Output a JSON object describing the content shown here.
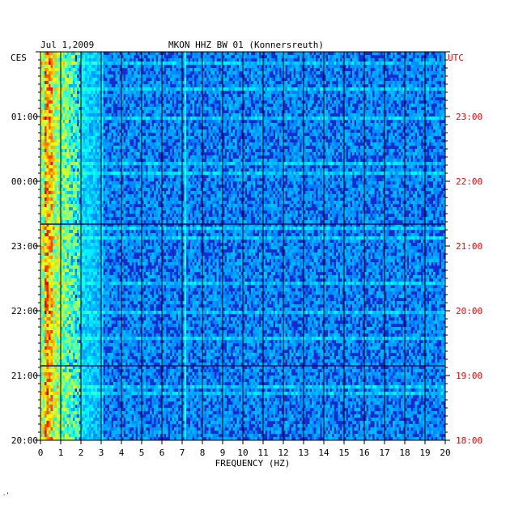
{
  "header": {
    "date": "Jul 1,2009",
    "station": "MKON HHZ BW 01 (Konnersreuth)"
  },
  "corner": {
    "left_tz": "CES",
    "right_tz": "UTC"
  },
  "footer": {
    "mark": "·ʼ"
  },
  "colors": {
    "utc_label": "#ff0000",
    "grid": "#000000",
    "background": "#1a2ad0"
  },
  "chart_data": {
    "type": "heatmap",
    "title": "",
    "xlabel": "FREQUENCY (HZ)",
    "ylabel": "",
    "xlim": [
      0,
      20
    ],
    "x_ticks": [
      "0",
      "1",
      "2",
      "3",
      "4",
      "5",
      "6",
      "7",
      "8",
      "9",
      "10",
      "11",
      "12",
      "13",
      "14",
      "15",
      "16",
      "17",
      "18",
      "19",
      "20"
    ],
    "left_time_labels": [
      "01:00",
      "00:00",
      "23:00",
      "22:00",
      "21:00",
      "20:00"
    ],
    "right_time_labels": [
      "23:00",
      "22:00",
      "21:00",
      "20:00",
      "19:00",
      "18:00"
    ],
    "colormap": "jet",
    "grid": true
  }
}
